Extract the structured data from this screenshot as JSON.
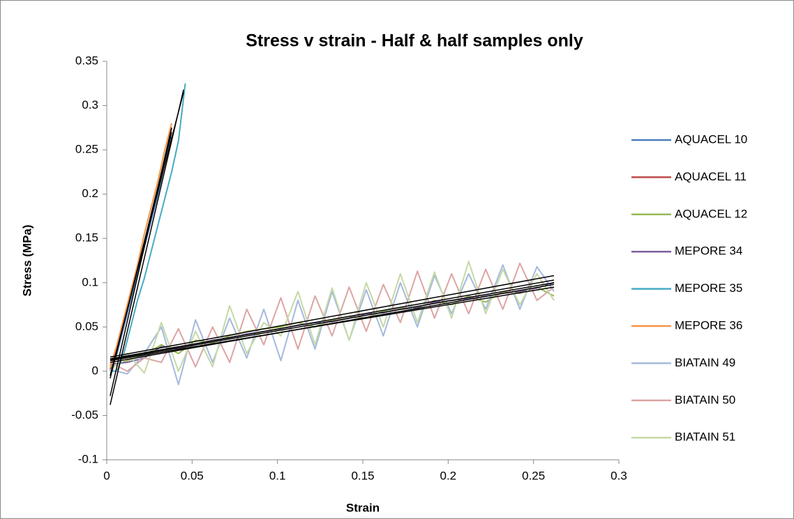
{
  "chart_data": {
    "type": "line",
    "title": "Stress v strain - Half & half samples only",
    "x_label": "Strain",
    "y_label": "Stress (MPa)",
    "xlim": [
      0,
      0.3
    ],
    "xticks": [
      0,
      0.05,
      0.1,
      0.15,
      0.2,
      0.25,
      0.3
    ],
    "ylim": [
      -0.1,
      0.35
    ],
    "yticks": [
      -0.1,
      -0.05,
      0,
      0.05,
      0.1,
      0.15,
      0.2,
      0.25,
      0.3,
      0.35
    ],
    "grid": false,
    "legend": "right",
    "series": [
      {
        "name": "AQUACEL 10",
        "color": "#4a7ebb",
        "x": [
          0.002,
          0.006,
          0.01,
          0.014,
          0.018,
          0.022,
          0.026,
          0.03,
          0.034,
          0.038
        ],
        "values": [
          0.0,
          0.02,
          0.05,
          0.08,
          0.11,
          0.14,
          0.17,
          0.2,
          0.235,
          0.265
        ],
        "trendline": {
          "color": "#000000",
          "x": [
            0.002,
            0.045
          ],
          "values": [
            -0.005,
            0.315
          ]
        }
      },
      {
        "name": "AQUACEL 11",
        "color": "#be4b48",
        "x": [
          0.002,
          0.006,
          0.01,
          0.014,
          0.018,
          0.022,
          0.026,
          0.03,
          0.034,
          0.038
        ],
        "values": [
          0.002,
          0.025,
          0.055,
          0.085,
          0.115,
          0.145,
          0.175,
          0.205,
          0.24,
          0.275
        ],
        "trendline": {
          "color": "#000000",
          "x": [
            0.002,
            0.038
          ],
          "values": [
            -0.008,
            0.27
          ]
        }
      },
      {
        "name": "AQUACEL 12",
        "color": "#98b954",
        "x": [
          0.002,
          0.012,
          0.022,
          0.032,
          0.042,
          0.052,
          0.062,
          0.072,
          0.082,
          0.092,
          0.102,
          0.112,
          0.122,
          0.132,
          0.142,
          0.152,
          0.162,
          0.172,
          0.182,
          0.192,
          0.202,
          0.212,
          0.222,
          0.232,
          0.242,
          0.252,
          0.262
        ],
        "values": [
          0.005,
          0.012,
          0.018,
          0.03,
          0.02,
          0.035,
          0.032,
          0.04,
          0.045,
          0.048,
          0.05,
          0.055,
          0.05,
          0.058,
          0.062,
          0.06,
          0.068,
          0.072,
          0.07,
          0.08,
          0.075,
          0.085,
          0.078,
          0.09,
          0.088,
          0.095,
          0.085
        ],
        "trendline": {
          "color": "#000000",
          "x": [
            0.002,
            0.262
          ],
          "values": [
            0.012,
            0.095
          ]
        }
      },
      {
        "name": "MEPORE 34",
        "color": "#7d60a0",
        "x": [
          0.002,
          0.012,
          0.022,
          0.032,
          0.042,
          0.052,
          0.062,
          0.072,
          0.082,
          0.092,
          0.102,
          0.112,
          0.122,
          0.132,
          0.142,
          0.152,
          0.162,
          0.172,
          0.182,
          0.192,
          0.202,
          0.212,
          0.222,
          0.232,
          0.242,
          0.252,
          0.262
        ],
        "values": [
          0.008,
          0.01,
          0.015,
          0.028,
          0.025,
          0.03,
          0.035,
          0.038,
          0.042,
          0.045,
          0.048,
          0.052,
          0.055,
          0.056,
          0.06,
          0.065,
          0.066,
          0.07,
          0.072,
          0.078,
          0.08,
          0.082,
          0.085,
          0.088,
          0.09,
          0.094,
          0.1
        ],
        "trendline": {
          "color": "#000000",
          "x": [
            0.002,
            0.262
          ],
          "values": [
            0.01,
            0.098
          ]
        }
      },
      {
        "name": "MEPORE 35",
        "color": "#46aac5",
        "x": [
          0.002,
          0.006,
          0.01,
          0.014,
          0.018,
          0.022,
          0.026,
          0.03,
          0.034,
          0.038,
          0.042,
          0.046
        ],
        "values": [
          0.0,
          0.0,
          0.02,
          0.05,
          0.08,
          0.105,
          0.135,
          0.165,
          0.195,
          0.225,
          0.26,
          0.325
        ],
        "trendline": {
          "color": "#000000",
          "x": [
            0.002,
            0.045
          ],
          "values": [
            -0.038,
            0.318
          ]
        }
      },
      {
        "name": "MEPORE 36",
        "color": "#f79646",
        "x": [
          0.002,
          0.006,
          0.01,
          0.014,
          0.018,
          0.022,
          0.026,
          0.03,
          0.034,
          0.038
        ],
        "values": [
          0.005,
          0.03,
          0.06,
          0.09,
          0.12,
          0.155,
          0.185,
          0.215,
          0.25,
          0.28
        ],
        "trendline": {
          "color": "#000000",
          "x": [
            0.002,
            0.038
          ],
          "values": [
            -0.028,
            0.275
          ]
        }
      },
      {
        "name": "BIATAIN 49",
        "color": "#a5b9dd",
        "x": [
          0.002,
          0.012,
          0.022,
          0.032,
          0.042,
          0.052,
          0.062,
          0.072,
          0.082,
          0.092,
          0.102,
          0.112,
          0.122,
          0.132,
          0.142,
          0.152,
          0.162,
          0.172,
          0.182,
          0.192,
          0.202,
          0.212,
          0.222,
          0.232,
          0.242,
          0.252,
          0.262
        ],
        "values": [
          0.002,
          -0.003,
          0.02,
          0.05,
          -0.015,
          0.058,
          0.01,
          0.06,
          0.015,
          0.07,
          0.012,
          0.08,
          0.025,
          0.09,
          0.035,
          0.092,
          0.04,
          0.1,
          0.05,
          0.108,
          0.065,
          0.11,
          0.07,
          0.12,
          0.07,
          0.118,
          0.09
        ],
        "trendline": {
          "color": "#000000",
          "x": [
            0.002,
            0.262
          ],
          "values": [
            0.014,
            0.103
          ]
        }
      },
      {
        "name": "BIATAIN 50",
        "color": "#dca5a4",
        "x": [
          0.002,
          0.012,
          0.022,
          0.032,
          0.042,
          0.052,
          0.062,
          0.072,
          0.082,
          0.092,
          0.102,
          0.112,
          0.122,
          0.132,
          0.142,
          0.152,
          0.162,
          0.172,
          0.182,
          0.192,
          0.202,
          0.212,
          0.222,
          0.232,
          0.242,
          0.252,
          0.262
        ],
        "values": [
          0.01,
          0.0,
          0.015,
          0.01,
          0.048,
          0.005,
          0.05,
          0.01,
          0.07,
          0.03,
          0.083,
          0.025,
          0.085,
          0.04,
          0.095,
          0.045,
          0.098,
          0.055,
          0.113,
          0.06,
          0.11,
          0.065,
          0.115,
          0.07,
          0.122,
          0.08,
          0.095
        ],
        "trendline": {
          "color": "#000000",
          "x": [
            0.002,
            0.262
          ],
          "values": [
            0.016,
            0.108
          ]
        }
      },
      {
        "name": "BIATAIN 51",
        "color": "#c5d9a6",
        "x": [
          0.002,
          0.012,
          0.022,
          0.032,
          0.042,
          0.052,
          0.062,
          0.072,
          0.082,
          0.092,
          0.102,
          0.112,
          0.122,
          0.132,
          0.142,
          0.152,
          0.162,
          0.172,
          0.182,
          0.192,
          0.202,
          0.212,
          0.222,
          0.232,
          0.242,
          0.252,
          0.262
        ],
        "values": [
          0.0,
          0.02,
          -0.002,
          0.055,
          0.0,
          0.045,
          0.005,
          0.074,
          0.02,
          0.055,
          0.04,
          0.09,
          0.03,
          0.094,
          0.035,
          0.1,
          0.05,
          0.11,
          0.055,
          0.112,
          0.06,
          0.124,
          0.065,
          0.115,
          0.075,
          0.11,
          0.08
        ],
        "trendline": {
          "color": "#000000",
          "x": [
            0.002,
            0.262
          ],
          "values": [
            0.013,
            0.1
          ]
        }
      }
    ]
  }
}
